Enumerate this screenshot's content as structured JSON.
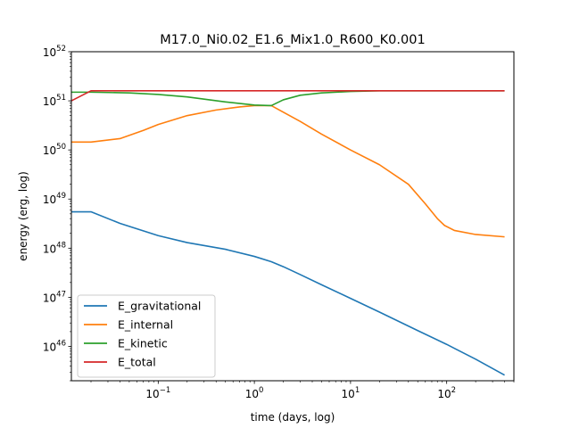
{
  "chart_data": {
    "type": "line",
    "title": "M17.0_Ni0.02_E1.6_Mix1.0_R600_K0.001",
    "xlabel": "time (days, log)",
    "ylabel": "energy (erg, log)",
    "x_scale": "log",
    "y_scale": "log",
    "xlim": [
      0.0125,
      500
    ],
    "ylim": [
      2e+45,
      1e+52
    ],
    "x_ticks": [
      {
        "value": 0.1,
        "base": "10",
        "exp": "−1"
      },
      {
        "value": 1,
        "base": "10",
        "exp": "0"
      },
      {
        "value": 10,
        "base": "10",
        "exp": "1"
      },
      {
        "value": 100,
        "base": "10",
        "exp": "2"
      }
    ],
    "y_ticks": [
      {
        "value": 1e+46,
        "base": "10",
        "exp": "46"
      },
      {
        "value": 1e+47,
        "base": "10",
        "exp": "47"
      },
      {
        "value": 1e+48,
        "base": "10",
        "exp": "48"
      },
      {
        "value": 1e+49,
        "base": "10",
        "exp": "49"
      },
      {
        "value": 1e+50,
        "base": "10",
        "exp": "50"
      },
      {
        "value": 1e+51,
        "base": "10",
        "exp": "51"
      },
      {
        "value": 1e+52,
        "base": "10",
        "exp": "52"
      }
    ],
    "grid": false,
    "legend_position": "lower-left",
    "series": [
      {
        "name": "E_gravitational",
        "color": "#1f77b4",
        "x": [
          0.0125,
          0.02,
          0.04,
          0.1,
          0.2,
          0.5,
          1.0,
          1.5,
          2.0,
          3,
          5,
          10,
          20,
          50,
          100,
          200,
          400
        ],
        "y": [
          5.5e+48,
          5.5e+48,
          3.2e+48,
          1.8e+48,
          1.3e+48,
          9.5e+47,
          6.8e+47,
          5.3e+47,
          4.2e+47,
          2.9e+47,
          1.8e+47,
          9.5e+46,
          5e+46,
          2.1e+46,
          1.1e+46,
          5.5e+45,
          2.6e+45
        ]
      },
      {
        "name": "E_internal",
        "color": "#ff7f0e",
        "x": [
          0.0125,
          0.02,
          0.04,
          0.07,
          0.1,
          0.2,
          0.4,
          0.7,
          1.0,
          1.5,
          3,
          5,
          10,
          20,
          40,
          60,
          80,
          95,
          120,
          200,
          400
        ],
        "y": [
          1.45e+50,
          1.45e+50,
          1.7e+50,
          2.5e+50,
          3.3e+50,
          5e+50,
          6.5e+50,
          7.5e+50,
          8e+50,
          8e+50,
          3.8e+50,
          2.1e+50,
          1e+50,
          5e+49,
          2e+49,
          8e+48,
          4e+48,
          2.9e+48,
          2.3e+48,
          1.9e+48,
          1.7e+48
        ]
      },
      {
        "name": "E_kinetic",
        "color": "#2ca02c",
        "x": [
          0.0125,
          0.02,
          0.05,
          0.1,
          0.2,
          0.5,
          1.0,
          1.5,
          2.0,
          3,
          5,
          10,
          20,
          50,
          100,
          200,
          400
        ],
        "y": [
          1.5e+51,
          1.5e+51,
          1.45e+51,
          1.35e+51,
          1.2e+51,
          9.5e+50,
          8.2e+50,
          8e+50,
          1.05e+51,
          1.3e+51,
          1.45e+51,
          1.55e+51,
          1.6e+51,
          1.6e+51,
          1.6e+51,
          1.6e+51,
          1.6e+51
        ]
      },
      {
        "name": "E_total",
        "color": "#d62728",
        "x": [
          0.0125,
          0.02,
          0.1,
          1.0,
          10,
          100,
          400
        ],
        "y": [
          1e+51,
          1.6e+51,
          1.6e+51,
          1.6e+51,
          1.6e+51,
          1.6e+51,
          1.6e+51
        ]
      }
    ]
  }
}
